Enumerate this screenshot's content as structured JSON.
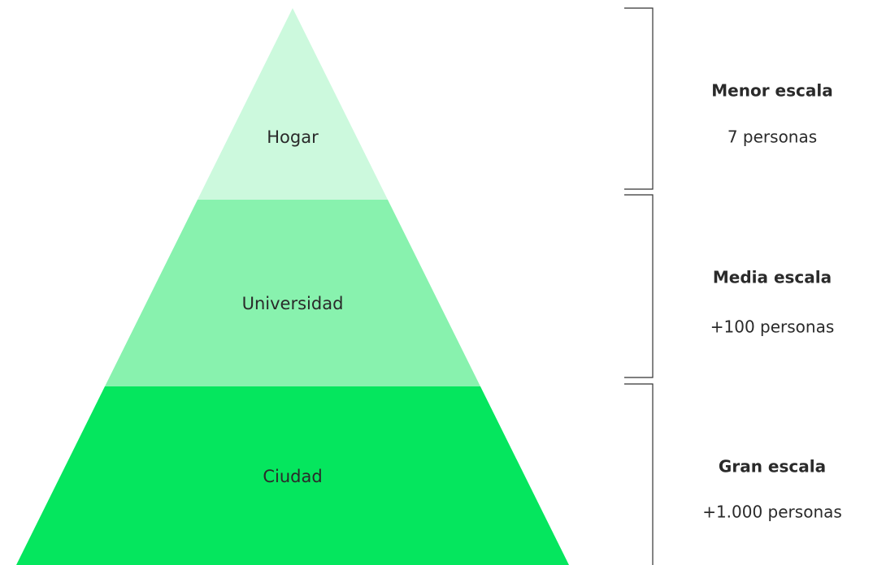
{
  "levels": [
    {
      "label": "Hogar",
      "heading": "Menor escala",
      "count": "7 personas"
    },
    {
      "label": "Universidad",
      "heading": "Media escala",
      "count": "+100 personas"
    },
    {
      "label": "Ciudad",
      "heading": "Gran escala",
      "count": "+1.000 personas"
    }
  ]
}
